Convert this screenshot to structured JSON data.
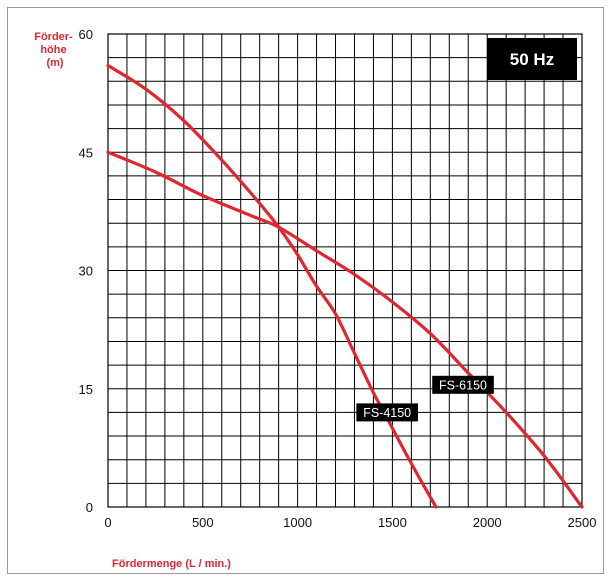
{
  "chart_data": {
    "type": "line",
    "badge": "50 Hz",
    "ylabel_lines": [
      "Förder-",
      "höhe",
      "(m)"
    ],
    "xlabel": "Fördermenge (L / min.)",
    "xlim": [
      0,
      2500
    ],
    "ylim": [
      0,
      60
    ],
    "x_ticks": [
      0,
      500,
      1000,
      1500,
      2000,
      2500
    ],
    "x_tick_labels": [
      "0",
      "500",
      "1000",
      "1500",
      "2000",
      "2500"
    ],
    "y_ticks": [
      0,
      15,
      30,
      45,
      60
    ],
    "y_tick_labels": [
      "0",
      "15",
      "30",
      "45",
      "60"
    ],
    "grid": true,
    "grid_x_step": 100,
    "grid_y_step": 3,
    "line_color": "#e3262d",
    "series": [
      {
        "name": "FS-4150",
        "label_anchor": [
          1310,
          12
        ],
        "points": [
          [
            0,
            56
          ],
          [
            200,
            53
          ],
          [
            400,
            49
          ],
          [
            600,
            44
          ],
          [
            800,
            38.5
          ],
          [
            900,
            35.5
          ],
          [
            1000,
            32
          ],
          [
            1100,
            28
          ],
          [
            1200,
            24.5
          ],
          [
            1300,
            19.5
          ],
          [
            1400,
            14.5
          ],
          [
            1500,
            10
          ],
          [
            1600,
            5.5
          ],
          [
            1730,
            0
          ]
        ]
      },
      {
        "name": "FS-6150",
        "label_anchor": [
          1710,
          15.5
        ],
        "points": [
          [
            0,
            45
          ],
          [
            250,
            42.5
          ],
          [
            500,
            39.5
          ],
          [
            750,
            37
          ],
          [
            900,
            35.5
          ],
          [
            1100,
            32.5
          ],
          [
            1300,
            29.5
          ],
          [
            1500,
            26
          ],
          [
            1700,
            22
          ],
          [
            1900,
            17
          ],
          [
            2100,
            12
          ],
          [
            2300,
            6.5
          ],
          [
            2500,
            0
          ]
        ]
      }
    ]
  }
}
